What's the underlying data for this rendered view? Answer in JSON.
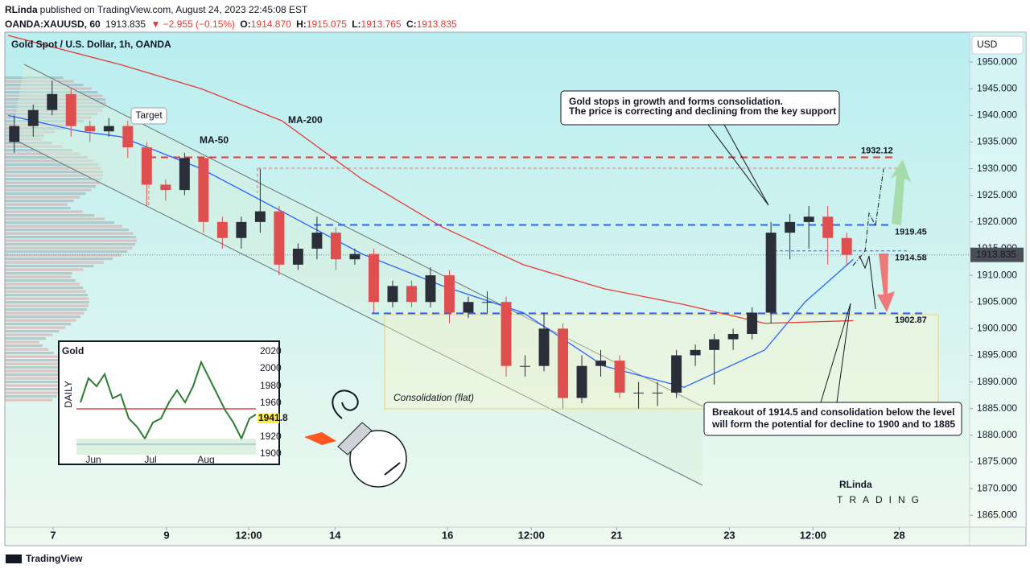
{
  "header": {
    "author": "RLinda",
    "published": "published on TradingView.com, August 24, 2023 22:45:08 EST",
    "symbol": "OANDA:XAUUSD, 60",
    "price": "1913.835",
    "change": "▼ −2.955 (−0.15%)",
    "open_label": "O:",
    "open": "1914.870",
    "high_label": "H:",
    "high": "1915.075",
    "low_label": "L:",
    "low": "1913.765",
    "close_label": "C:",
    "close": "1913.835"
  },
  "chart_data": {
    "type": "candlestick",
    "title": "Gold Spot / U.S. Dollar, 1h, OANDA",
    "currency": "USD",
    "up_color": "#2a2e39",
    "down_color": "#e04f4f",
    "x": [
      0.5,
      1.5,
      2.5,
      3.5,
      4.5,
      5.5,
      6.5,
      7.5,
      8.5,
      9.5,
      10.5,
      11.5,
      12.5,
      13.5,
      14.5,
      15.5,
      16.5,
      17.5,
      18.5,
      19.5,
      20.5,
      21.5,
      22.5,
      23.5,
      24.5,
      25.5,
      26.5,
      27.5,
      28.5,
      29.5,
      30.5,
      31.5,
      32.5,
      33.5,
      34.5,
      35.5,
      36.5,
      37.5,
      38.5,
      39.5,
      40.5,
      41.5,
      42.5,
      43.5,
      44.5
    ],
    "open": [
      1935,
      1938,
      1941,
      1944,
      1938,
      1937,
      1938,
      1934,
      1927,
      1926,
      1932,
      1920,
      1917,
      1920,
      1922,
      1912,
      1915,
      1918,
      1913,
      1914,
      1905,
      1908,
      1905,
      1910,
      1903,
      1905,
      1905,
      1893,
      1893,
      1900,
      1887,
      1893,
      1894,
      1888,
      1888,
      1888,
      1895,
      1896,
      1898,
      1899,
      1903,
      1918,
      1920,
      1921,
      1917
    ],
    "high": [
      1940,
      1942,
      1946.5,
      1945,
      1939,
      1939.5,
      1939,
      1935,
      1928,
      1933,
      1932,
      1921,
      1921,
      1930,
      1923,
      1916,
      1921,
      1919,
      1915,
      1915,
      1909,
      1909,
      1911.5,
      1911,
      1906,
      1907,
      1906,
      1895,
      1903,
      1901,
      1895,
      1896,
      1895,
      1890,
      1890,
      1896,
      1897,
      1899,
      1900,
      1904,
      1920,
      1921.5,
      1923,
      1923,
      1918
    ],
    "low": [
      1933,
      1936,
      1940,
      1936,
      1935,
      1936,
      1932,
      1923,
      1924,
      1925,
      1918,
      1915,
      1915,
      1918,
      1910,
      1911,
      1913,
      1911,
      1912,
      1903,
      1904,
      1904,
      1904,
      1901,
      1902,
      1903,
      1891,
      1891,
      1892,
      1885,
      1886,
      1891,
      1887,
      1885,
      1885.5,
      1887,
      1893,
      1889.5,
      1896,
      1898,
      1901,
      1913,
      1915,
      1912,
      1912
    ],
    "close": [
      1938,
      1941,
      1944,
      1938,
      1937,
      1938,
      1934,
      1927,
      1926,
      1932,
      1920,
      1917,
      1920,
      1922,
      1912,
      1915,
      1918,
      1913,
      1914,
      1905,
      1908,
      1905,
      1910,
      1903,
      1905,
      1905,
      1893,
      1893,
      1900,
      1887,
      1893,
      1894,
      1888,
      1888,
      1888,
      1895,
      1896,
      1898,
      1899,
      1903,
      1918,
      1920,
      1921,
      1917,
      1913.835
    ],
    "series": [
      {
        "name": "MA-50",
        "color": "#2962ff",
        "x": [
          0.17,
          4,
          6.13,
          10.38,
          14.64,
          18.89,
          23.15,
          27.4,
          31.66,
          35.91,
          40.17,
          42.3,
          44.85
        ],
        "values": [
          1940,
          1937,
          1936,
          1930,
          1922,
          1914,
          1908,
          1903,
          1893,
          1889,
          1896,
          1905,
          1913
        ]
      },
      {
        "name": "MA-200",
        "color": "#e53935",
        "x": [
          0.17,
          6.13,
          10.38,
          14.64,
          18.89,
          23.15,
          27.4,
          31.66,
          35.91,
          40.17,
          44.85
        ],
        "values": [
          1955,
          1949.5,
          1945,
          1939,
          1928,
          1919,
          1912,
          1907.5,
          1904.5,
          1901,
          1901.5
        ]
      }
    ],
    "levels": [
      {
        "value": 1932.12,
        "color": "#e53935"
      },
      {
        "value": 1919.45,
        "color": "#2962ff"
      },
      {
        "value": 1914.58,
        "color": "#2962ff"
      },
      {
        "value": 1902.87,
        "color": "#2962ff"
      }
    ],
    "last_price": 1913.835,
    "xlim": [
      0,
      51
    ],
    "ylim": [
      1859.3,
      1955.6
    ],
    "xticks": [
      {
        "value": 2.55,
        "label": "7"
      },
      {
        "value": 8.55,
        "label": "9"
      },
      {
        "value": 12.89,
        "label": "12:00"
      },
      {
        "value": 17.45,
        "label": "14"
      },
      {
        "value": 23.4,
        "label": "16"
      },
      {
        "value": 27.83,
        "label": "12:00"
      },
      {
        "value": 32.34,
        "label": "21"
      },
      {
        "value": 38.3,
        "label": "23"
      },
      {
        "value": 42.72,
        "label": "12:00"
      },
      {
        "value": 47.28,
        "label": "28"
      }
    ],
    "yticks": [
      {
        "value": 1865,
        "label": "1865.000"
      },
      {
        "value": 1870,
        "label": "1870.000"
      },
      {
        "value": 1875,
        "label": "1875.000"
      },
      {
        "value": 1880,
        "label": "1880.000"
      },
      {
        "value": 1885,
        "label": "1885.000"
      },
      {
        "value": 1890,
        "label": "1890.000"
      },
      {
        "value": 1895,
        "label": "1895.000"
      },
      {
        "value": 1900,
        "label": "1900.000"
      },
      {
        "value": 1905,
        "label": "1905.000"
      },
      {
        "value": 1910,
        "label": "1910.000"
      },
      {
        "value": 1915,
        "label": "1915.000"
      },
      {
        "value": 1920,
        "label": "1920.000"
      },
      {
        "value": 1925,
        "label": "1925.000"
      },
      {
        "value": 1930,
        "label": "1930.000"
      },
      {
        "value": 1935,
        "label": "1935.000"
      },
      {
        "value": 1940,
        "label": "1940.000"
      },
      {
        "value": 1945,
        "label": "1945.000"
      },
      {
        "value": 1950,
        "label": "1950.000"
      }
    ],
    "annotations": [
      {
        "lines": [
          "Gold stops in growth and forms consolidation.",
          "The price is correcting and declining from the key support"
        ]
      },
      {
        "lines": [
          "Breakout of 1914.5 and consolidation below the level",
          "will form the potential for decline to 1900 and to 1885"
        ]
      }
    ],
    "target_label": "Target",
    "consolidation_label": "Consolidation (flat)"
  },
  "inset": {
    "title": "Gold",
    "caption": "DAILY",
    "yticks": [
      "2020",
      "2000",
      "1980",
      "1960",
      "1920",
      "1900"
    ],
    "months": [
      "Jun",
      "Jul",
      "Aug"
    ],
    "price": "1941.8"
  },
  "logo": {
    "name": "RLinda",
    "tag": "TRADING"
  },
  "footer": {
    "brand": "TradingView"
  }
}
